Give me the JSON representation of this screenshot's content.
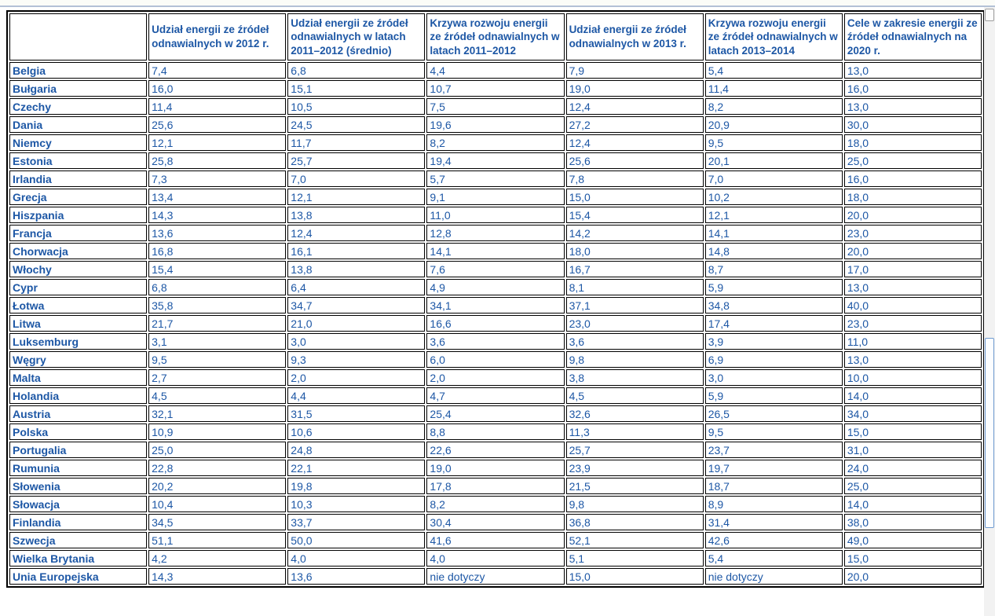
{
  "colors": {
    "text_blue": "#1d57a5",
    "cell_border": "#000000",
    "topbar_line": "#b3c1d6",
    "scroll_thumb_border": "#6f9bd1",
    "scroll_track": "#f2f2f2"
  },
  "table": {
    "columns": [
      "",
      "Udział energii ze źródeł odnawialnych w 2012 r.",
      "Udział energii ze źródeł odnawialnych w latach 2011–2012 (średnio)",
      "Krzywa rozwoju energii ze źródeł odnawialnych w latach 2011–2012",
      "Udział energii ze źródeł odnawialnych w 2013 r.",
      "Krzywa rozwoju energii ze źródeł odnawialnych w latach 2013–2014",
      "Cele w zakresie energii ze źródeł odnawialnych na 2020 r."
    ],
    "rows": [
      {
        "name": "Belgia",
        "values": [
          "7,4",
          "6,8",
          "4,4",
          "7,9",
          "5,4",
          "13,0"
        ]
      },
      {
        "name": "Bułgaria",
        "values": [
          "16,0",
          "15,1",
          "10,7",
          "19,0",
          "11,4",
          "16,0"
        ]
      },
      {
        "name": "Czechy",
        "values": [
          "11,4",
          "10,5",
          "7,5",
          "12,4",
          "8,2",
          "13,0"
        ]
      },
      {
        "name": "Dania",
        "values": [
          "25,6",
          "24,5",
          "19,6",
          "27,2",
          "20,9",
          "30,0"
        ]
      },
      {
        "name": "Niemcy",
        "values": [
          "12,1",
          "11,7",
          "8,2",
          "12,4",
          "9,5",
          "18,0"
        ]
      },
      {
        "name": "Estonia",
        "values": [
          "25,8",
          "25,7",
          "19,4",
          "25,6",
          "20,1",
          "25,0"
        ]
      },
      {
        "name": "Irlandia",
        "values": [
          "7,3",
          "7,0",
          "5,7",
          "7,8",
          "7,0",
          "16,0"
        ]
      },
      {
        "name": "Grecja",
        "values": [
          "13,4",
          "12,1",
          "9,1",
          "15,0",
          "10,2",
          "18,0"
        ]
      },
      {
        "name": "Hiszpania",
        "values": [
          "14,3",
          "13,8",
          "11,0",
          "15,4",
          "12,1",
          "20,0"
        ]
      },
      {
        "name": "Francja",
        "values": [
          "13,6",
          "12,4",
          "12,8",
          "14,2",
          "14,1",
          "23,0"
        ]
      },
      {
        "name": "Chorwacja",
        "values": [
          "16,8",
          "16,1",
          "14,1",
          "18,0",
          "14,8",
          "20,0"
        ]
      },
      {
        "name": "Włochy",
        "values": [
          "15,4",
          "13,8",
          "7,6",
          "16,7",
          "8,7",
          "17,0"
        ]
      },
      {
        "name": "Cypr",
        "values": [
          "6,8",
          "6,4",
          "4,9",
          "8,1",
          "5,9",
          "13,0"
        ]
      },
      {
        "name": "Łotwa",
        "values": [
          "35,8",
          "34,7",
          "34,1",
          "37,1",
          "34,8",
          "40,0"
        ]
      },
      {
        "name": "Litwa",
        "values": [
          "21,7",
          "21,0",
          "16,6",
          "23,0",
          "17,4",
          "23,0"
        ]
      },
      {
        "name": "Luksemburg",
        "values": [
          "3,1",
          "3,0",
          "3,6",
          "3,6",
          "3,9",
          "11,0"
        ]
      },
      {
        "name": "Węgry",
        "values": [
          "9,5",
          "9,3",
          "6,0",
          "9,8",
          "6,9",
          "13,0"
        ]
      },
      {
        "name": "Malta",
        "values": [
          "2,7",
          "2,0",
          "2,0",
          "3,8",
          "3,0",
          "10,0"
        ]
      },
      {
        "name": "Holandia",
        "values": [
          "4,5",
          "4,4",
          "4,7",
          "4,5",
          "5,9",
          "14,0"
        ]
      },
      {
        "name": "Austria",
        "values": [
          "32,1",
          "31,5",
          "25,4",
          "32,6",
          "26,5",
          "34,0"
        ]
      },
      {
        "name": "Polska",
        "values": [
          "10,9",
          "10,6",
          "8,8",
          "11,3",
          "9,5",
          "15,0"
        ]
      },
      {
        "name": "Portugalia",
        "values": [
          "25,0",
          "24,8",
          "22,6",
          "25,7",
          "23,7",
          "31,0"
        ]
      },
      {
        "name": "Rumunia",
        "values": [
          "22,8",
          "22,1",
          "19,0",
          "23,9",
          "19,7",
          "24,0"
        ]
      },
      {
        "name": "Słowenia",
        "values": [
          "20,2",
          "19,8",
          "17,8",
          "21,5",
          "18,7",
          "25,0"
        ]
      },
      {
        "name": "Słowacja",
        "values": [
          "10,4",
          "10,3",
          "8,2",
          "9,8",
          "8,9",
          "14,0"
        ]
      },
      {
        "name": "Finlandia",
        "values": [
          "34,5",
          "33,7",
          "30,4",
          "36,8",
          "31,4",
          "38,0"
        ]
      },
      {
        "name": "Szwecja",
        "values": [
          "51,1",
          "50,0",
          "41,6",
          "52,1",
          "42,6",
          "49,0"
        ]
      },
      {
        "name": "Wielka Brytania",
        "values": [
          "4,2",
          "4,0",
          "4,0",
          "5,1",
          "5,4",
          "15,0"
        ]
      },
      {
        "name": "Unia Europejska",
        "values": [
          "14,3",
          "13,6",
          "nie dotyczy",
          "15,0",
          "nie dotyczy",
          "20,0"
        ]
      }
    ]
  }
}
